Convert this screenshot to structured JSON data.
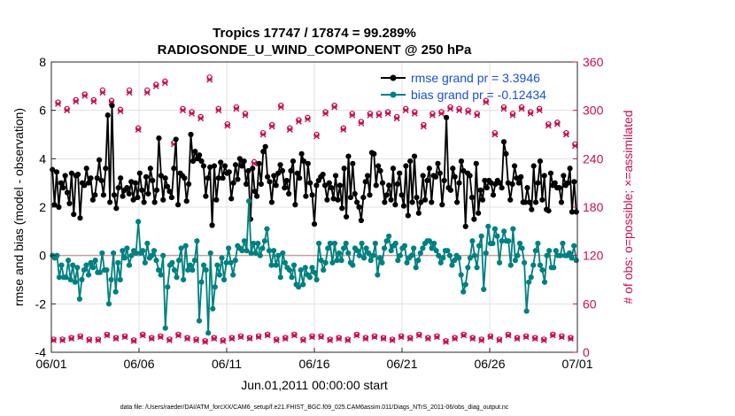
{
  "colors": {
    "rmse": "#000000",
    "bias": "#008080",
    "obs": "#c8104a",
    "zero_line": "#c8a0a0",
    "legend_text": "#1a4fd6"
  },
  "chart_data": {
    "type": "line",
    "title": "Tropics 17747 / 17874 = 99.289%",
    "subtitle": "RADIOSONDE_U_WIND_COMPONENT @ 250 hPa",
    "xlabel": "Jun.01,2011 00:00:00 start",
    "ylabel": "rmse and bias (model - observation)",
    "ylabel_right": "# of obs: o=possible; ×=assimilated",
    "xlim": [
      0,
      30
    ],
    "ylim": [
      -4,
      8
    ],
    "ylim_right": [
      0,
      360
    ],
    "x_ticks": [
      0,
      5,
      10,
      15,
      20,
      25,
      30
    ],
    "x_tick_labels": [
      "06/01",
      "06/06",
      "06/11",
      "06/16",
      "06/21",
      "06/26",
      "07/01"
    ],
    "y_ticks": [
      -4,
      -2,
      0,
      2,
      4,
      6,
      8
    ],
    "y_ticks_right": [
      0,
      60,
      120,
      180,
      240,
      300,
      360
    ],
    "grid": true,
    "legend_location": "top-right",
    "series": [
      {
        "name": "rmse grand pr = 3.3946",
        "values": [
          3.55,
          2.1,
          3.45,
          2.0,
          3.0,
          2.8,
          3.3,
          2.6,
          2.15,
          3.4,
          1.7,
          3.3,
          3.35,
          1.55,
          3.0,
          2.9,
          3.6,
          3.0,
          3.2,
          2.3,
          2.5,
          3.2,
          3.95,
          3.1,
          2.5,
          3.6,
          5.8,
          2.2,
          6.2,
          2.5,
          1.95,
          2.8,
          3.2,
          2.45,
          2.7,
          2.8,
          2.55,
          3.05,
          2.3,
          3.0,
          2.4,
          3.4,
          2.7,
          2.2,
          3.25,
          2.55,
          3.6,
          3.1,
          2.2,
          2.7,
          4.85,
          3.3,
          2.3,
          3.2,
          2.85,
          2.65,
          2.4,
          3.6,
          4.8,
          2.1,
          3.4,
          3.3,
          3.2,
          2.25,
          2.95,
          5.0,
          3.9,
          4.3,
          4.0,
          4.15,
          3.9,
          3.7,
          2.45,
          3.2,
          3.65,
          1.25,
          3.7,
          2.3,
          3.2,
          3.85,
          3.2,
          3.7,
          3.4,
          3.45,
          2.35,
          3.0,
          3.75,
          3.15,
          4.0,
          3.7,
          3.9,
          2.95,
          3.5,
          1.5,
          3.6,
          2.65,
          2.45,
          3.8,
          2.95,
          4.3,
          4.5,
          3.25,
          3.05,
          2.2,
          3.3,
          2.9,
          3.4,
          3.75,
          3.5,
          2.8,
          3.1,
          2.55,
          3.5,
          3.9,
          2.1,
          3.4,
          3.2,
          4.2,
          3.9,
          2.45,
          3.8,
          3.0,
          2.5,
          1.3,
          2.9,
          3.1,
          3.25,
          3.35,
          2.9,
          2.3,
          3.0,
          2.8,
          2.35,
          3.3,
          2.3,
          2.9,
          1.95,
          3.6,
          1.6,
          4.1,
          2.4,
          3.8,
          2.55,
          2.2,
          2.0,
          1.45,
          2.4,
          3.05,
          3.3,
          2.5,
          4.25,
          4.2,
          2.9,
          3.7,
          3.5,
          3.0,
          2.2,
          2.5,
          2.9,
          2.3,
          3.6,
          2.1,
          2.95,
          3.4,
          2.5,
          2.05,
          3.7,
          1.65,
          3.9,
          2.2,
          4.1,
          2.4,
          1.75,
          2.2,
          3.3,
          2.3,
          3.1,
          3.6,
          2.2,
          3.3,
          3.25,
          3.8,
          3.4,
          2.1,
          3.1,
          5.7,
          2.8,
          2.7,
          3.6,
          3.25,
          2.2,
          3.0,
          3.9,
          3.5,
          1.2,
          3.4,
          3.3,
          2.4,
          1.5,
          3.8,
          1.75,
          2.7,
          2.3,
          3.1,
          2.8,
          3.1,
          3.0,
          2.5,
          2.95,
          3.1,
          3.0,
          2.8,
          4.7,
          4.2,
          3.0,
          2.3,
          2.95,
          3.7,
          3.2,
          3.0,
          3.25,
          2.2,
          2.2,
          2.8,
          2.2,
          1.9,
          3.7,
          2.2,
          3.0,
          3.9,
          2.3,
          3.3,
          1.9,
          1.85,
          3.4,
          2.9,
          3.0,
          2.8,
          2.8,
          2.2,
          3.3,
          2.9,
          3.0,
          3.6,
          1.8,
          3.05,
          1.8
        ]
      },
      {
        "name": "bias grand pr = -0.12434",
        "values": [
          0.0,
          -0.1,
          0.0,
          -0.9,
          -0.4,
          -0.9,
          -0.9,
          -0.2,
          -1.0,
          -0.4,
          -1.1,
          -0.5,
          -1.8,
          -1.0,
          -0.6,
          -0.4,
          -0.8,
          -0.3,
          -0.5,
          -0.2,
          -0.7,
          -0.7,
          0.1,
          -0.6,
          -0.6,
          -2.0,
          -1.0,
          0.1,
          -1.5,
          -0.3,
          -1.0,
          0.2,
          -0.1,
          0.3,
          -0.4,
          0.0,
          0.2,
          0.1,
          1.4,
          0.1,
          0.2,
          -0.3,
          0.5,
          -0.1,
          0.0,
          0.2,
          -0.2,
          -0.6,
          -0.8,
          0.0,
          -3.0,
          -1.3,
          -0.4,
          -0.3,
          -0.6,
          -0.9,
          -0.2,
          0.3,
          -1.0,
          0.4,
          -0.6,
          -0.4,
          -0.6,
          -0.2,
          0.6,
          -2.7,
          -1.1,
          -0.4,
          -0.6,
          -3.2,
          0.1,
          -2.2,
          -1.3,
          -0.4,
          -0.8,
          -0.1,
          -1.0,
          -0.3,
          0.3,
          -0.3,
          -0.8,
          -0.2,
          0.4,
          0.3,
          0.2,
          0.6,
          0.2,
          2.25,
          0.1,
          0.5,
          0.1,
          0.5,
          0.0,
          0.3,
          0.6,
          1.1,
          0.2,
          -0.4,
          0.2,
          -0.4,
          0.0,
          -0.9,
          0.1,
          -0.3,
          -0.5,
          -0.6,
          -0.9,
          -0.4,
          -1.2,
          -1.3,
          -0.6,
          -1.2,
          -0.5,
          -0.8,
          -0.9,
          -0.5,
          -0.7,
          -1.0,
          0.5,
          -0.2,
          -0.6,
          -0.3,
          0.3,
          0.5,
          -0.3,
          0.5,
          -0.2,
          0.1,
          -0.2,
          0.3,
          0.5,
          0.1,
          -0.3,
          -0.4,
          0.3,
          0.2,
          0.0,
          0.5,
          -0.1,
          0.3,
          0.1,
          -0.2,
          0.0,
          0.5,
          -0.8,
          -0.1,
          -0.3,
          0.3,
          0.6,
          0.8,
          0.2,
          0.4,
          0.5,
          -0.2,
          0.0,
          0.3,
          0.4,
          -0.3,
          -0.1,
          0.0,
          0.3,
          -0.5,
          -0.2,
          0.1,
          0.3,
          0.5,
          0.6,
          0.6,
          0.3,
          0.5,
          0.2,
          0.0,
          -0.3,
          -0.1,
          0.2,
          0.2,
          0.0,
          -0.4,
          -0.2,
          0.0,
          -0.1,
          -0.8,
          -1.5,
          -1.2,
          -0.5,
          -0.1,
          0.6,
          0.0,
          -0.5,
          0.4,
          0.8,
          -1.4,
          0.1,
          1.2,
          0.5,
          0.5,
          1.1,
          0.8,
          -0.3,
          0.6,
          1.0,
          0.6,
          0.6,
          -0.4,
          1.1,
          -0.2,
          0.0,
          0.5,
          0.3,
          -0.3,
          -2.3,
          -1.1,
          -0.9,
          -0.4,
          0.2,
          0.5,
          -0.4,
          -0.6,
          -1.1,
          0.0,
          0.2,
          -0.5,
          -0.5,
          0.2,
          0.0,
          0.0,
          0.5,
          0.0,
          0.0,
          0.1,
          -0.1,
          0.4,
          -0.2
        ]
      }
    ],
    "obs_possible": {
      "marker": "o",
      "values": [
        16,
        310,
        16,
        302,
        18,
        313,
        20,
        320,
        16,
        313,
        16,
        325,
        22,
        312,
        18,
        301,
        20,
        325,
        15,
        278,
        22,
        325,
        18,
        332,
        20,
        336,
        16,
        260,
        22,
        302,
        18,
        298,
        16,
        292,
        14,
        341,
        18,
        302,
        15,
        283,
        18,
        304,
        20,
        296,
        18,
        236,
        20,
        272,
        22,
        282,
        16,
        306,
        18,
        278,
        22,
        288,
        16,
        291,
        20,
        270,
        20,
        298,
        16,
        306,
        18,
        278,
        16,
        296,
        22,
        286,
        18,
        296,
        20,
        296,
        18,
        298,
        16,
        292,
        20,
        302,
        18,
        298,
        22,
        282,
        18,
        296,
        20,
        298,
        14,
        304,
        18,
        302,
        22,
        300,
        18,
        296,
        16,
        312,
        20,
        272,
        16,
        304,
        22,
        296,
        18,
        304,
        20,
        298,
        18,
        302,
        16,
        283,
        22,
        285,
        20,
        272,
        18,
        258
      ]
    },
    "obs_assimilated": {
      "marker": "x",
      "values": [
        15,
        308,
        15,
        300,
        17,
        311,
        19,
        318,
        15,
        311,
        15,
        322,
        21,
        310,
        17,
        299,
        19,
        322,
        14,
        276,
        21,
        322,
        17,
        330,
        19,
        334,
        15,
        258,
        21,
        300,
        17,
        296,
        15,
        290,
        13,
        338,
        17,
        300,
        14,
        281,
        17,
        302,
        19,
        294,
        17,
        234,
        19,
        270,
        21,
        280,
        15,
        304,
        17,
        276,
        21,
        286,
        15,
        289,
        19,
        268,
        19,
        296,
        15,
        304,
        17,
        276,
        15,
        294,
        21,
        284,
        17,
        294,
        19,
        294,
        17,
        296,
        15,
        290,
        19,
        300,
        17,
        296,
        21,
        280,
        17,
        294,
        19,
        296,
        13,
        302,
        17,
        300,
        21,
        298,
        17,
        294,
        15,
        310,
        19,
        270,
        15,
        302,
        21,
        294,
        17,
        302,
        19,
        296,
        17,
        300,
        15,
        281,
        21,
        283,
        19,
        270,
        17,
        256
      ]
    },
    "footer_text": "data file: /Users/raeder/DAI/ATM_forcXX/CAM6_setup/f.e21.FHIST_BGC.f09_025.CAM6assim.011/Diags_NTrS_2011-06/obs_diag_output.nc"
  }
}
